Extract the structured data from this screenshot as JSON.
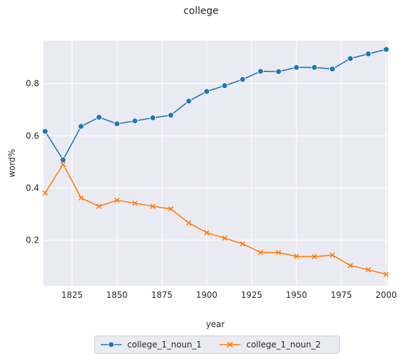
{
  "chart_data": {
    "type": "line",
    "title": "college",
    "xlabel": "year",
    "ylabel": "word%",
    "xlim": [
      1809,
      2001
    ],
    "ylim": [
      0.025,
      0.965
    ],
    "x_ticks": [
      1825,
      1850,
      1875,
      1900,
      1925,
      1950,
      1975,
      2000
    ],
    "y_ticks": [
      0.2,
      0.4,
      0.6,
      0.8
    ],
    "x_tick_labels": [
      "1825",
      "1850",
      "1875",
      "1900",
      "1925",
      "1950",
      "1975",
      "2000"
    ],
    "y_tick_labels": [
      "0.2",
      "0.4",
      "0.6",
      "0.8"
    ],
    "x": [
      1810,
      1820,
      1830,
      1840,
      1850,
      1860,
      1870,
      1880,
      1890,
      1900,
      1910,
      1920,
      1930,
      1940,
      1950,
      1960,
      1970,
      1980,
      1990,
      2000
    ],
    "series": [
      {
        "name": "college_1_noun_1",
        "color": "#1f77b4",
        "marker": "circle",
        "values": [
          0.617,
          0.508,
          0.636,
          0.671,
          0.646,
          0.657,
          0.669,
          0.679,
          0.733,
          0.77,
          0.792,
          0.816,
          0.847,
          0.846,
          0.862,
          0.862,
          0.856,
          0.896,
          0.914,
          0.931
        ]
      },
      {
        "name": "college_1_noun_2",
        "color": "#ff7f0e",
        "marker": "x",
        "values": [
          0.381,
          0.491,
          0.362,
          0.33,
          0.353,
          0.342,
          0.33,
          0.32,
          0.266,
          0.229,
          0.208,
          0.186,
          0.153,
          0.153,
          0.138,
          0.137,
          0.143,
          0.103,
          0.087,
          0.069
        ]
      }
    ],
    "grid": true,
    "background": "#eaeaf2",
    "legend_position": "bottom-center"
  }
}
